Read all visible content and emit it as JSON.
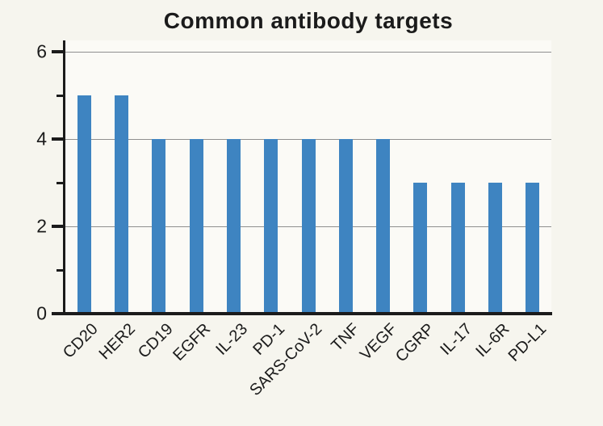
{
  "title": "Common antibody targets",
  "colors": {
    "background": "#f6f5ee",
    "plot_background": "#fbfaf6",
    "bar": "#3e84c1",
    "grid": "#8f8f8f",
    "axis": "#1b1b1b",
    "text": "#1b1b1b"
  },
  "chart_data": {
    "type": "bar",
    "title": "Common antibody targets",
    "categories": [
      "CD20",
      "HER2",
      "CD19",
      "EGFR",
      "IL-23",
      "PD-1",
      "SARS-CoV-2",
      "TNF",
      "VEGF",
      "CGRP",
      "IL-17",
      "IL-6R",
      "PD-L1"
    ],
    "values": [
      5,
      5,
      4,
      4,
      4,
      4,
      4,
      4,
      4,
      3,
      3,
      3,
      3
    ],
    "xlabel": "",
    "ylabel": "",
    "ylim": [
      0,
      6.26
    ],
    "ytick_values": [
      0,
      2,
      4,
      6
    ],
    "ytick_labels": [
      "0",
      "2",
      "4",
      "6"
    ],
    "minor_ytick_values": [
      1,
      3,
      5
    ],
    "gridline_values": [
      2,
      4,
      6
    ],
    "grid": "horizontal-only",
    "legend_position": "none",
    "xtick_rotation_degrees": 45,
    "bar_color": "#3e84c1"
  }
}
